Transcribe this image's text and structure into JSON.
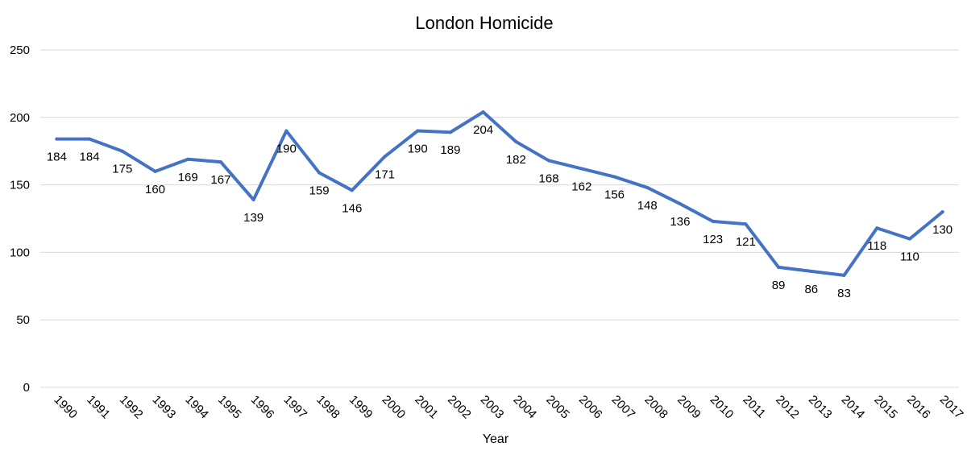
{
  "chart_data": {
    "type": "line",
    "title": "London Homicide",
    "xlabel": "Year",
    "ylabel": "",
    "ylim": [
      0,
      250
    ],
    "yticks": [
      0,
      50,
      100,
      150,
      200,
      250
    ],
    "grid": true,
    "legend": "none",
    "line_color": "#4472C4",
    "grid_color": "#D9D9D9",
    "categories": [
      "1990",
      "1991",
      "1992",
      "1993",
      "1994",
      "1995",
      "1996",
      "1997",
      "1998",
      "1999",
      "2000",
      "2001",
      "2002",
      "2003",
      "2004",
      "2005",
      "2006",
      "2007",
      "2008",
      "2009",
      "2010",
      "2011",
      "2012",
      "2013",
      "2014",
      "2015",
      "2016",
      "2017"
    ],
    "series": [
      {
        "values": [
          184,
          184,
          175,
          160,
          169,
          167,
          139,
          190,
          159,
          146,
          171,
          190,
          189,
          204,
          182,
          168,
          162,
          156,
          148,
          136,
          123,
          121,
          89,
          86,
          83,
          118,
          110,
          130
        ]
      }
    ]
  }
}
